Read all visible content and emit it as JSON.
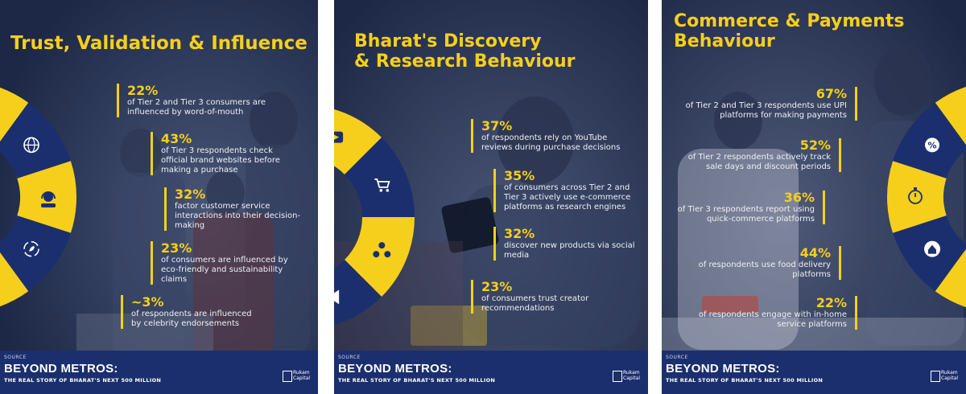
{
  "footer": {
    "source_label": "SOURCE",
    "brand": "BEYOND METROS:",
    "tagline": "THE REAL STORY OF BHARAT'S NEXT 500 MILLION",
    "logo_name": "Rukam",
    "logo_sub": "Capital"
  },
  "panels": [
    {
      "title_lines": [
        "Trust, Validation & Influence"
      ],
      "stats": [
        {
          "pct": "22%",
          "desc": "of Tier 2 and Tier 3 consumers are influenced by word-of-mouth"
        },
        {
          "pct": "43%",
          "desc": "of Tier 3 respondents check official brand websites before making a purchase"
        },
        {
          "pct": "32%",
          "desc": "factor customer service interactions into their decision-making"
        },
        {
          "pct": "23%",
          "desc": "of consumers are influenced by eco-friendly and sustainability claims"
        },
        {
          "pct": "~3%",
          "desc": "of respondents are influenced by celebrity endorsements"
        }
      ],
      "icons": [
        "speaking-head-icon",
        "globe-icon",
        "support-agent-icon",
        "eco-recycle-icon",
        "celebrity-star-icon"
      ]
    },
    {
      "title_lines": [
        "Bharat's Discovery",
        "& Research Behaviour"
      ],
      "stats": [
        {
          "pct": "37%",
          "desc": "of respondents rely on YouTube reviews during purchase decisions"
        },
        {
          "pct": "35%",
          "desc": "of consumers across Tier 2 and Tier 3 actively use e-commerce platforms as research engines"
        },
        {
          "pct": "32%",
          "desc": "discover new products via social media"
        },
        {
          "pct": "23%",
          "desc": "of consumers trust creator recommendations"
        }
      ],
      "icons": [
        "youtube-play-icon",
        "shopping-cart-icon",
        "social-network-icon",
        "megaphone-icon"
      ]
    },
    {
      "title_lines": [
        "Commerce & Payments",
        "Behaviour"
      ],
      "stats": [
        {
          "pct": "67%",
          "desc": "of Tier 2 and Tier 3 respondents use UPI platforms for making payments"
        },
        {
          "pct": "52%",
          "desc": "of Tier 2 respondents actively track sale days and discount periods"
        },
        {
          "pct": "36%",
          "desc": "of Tier 3 respondents report using quick-commerce platforms"
        },
        {
          "pct": "44%",
          "desc": "of respondents use food delivery platforms"
        },
        {
          "pct": "22%",
          "desc": "of respondents engage with in-home service platforms"
        }
      ],
      "icons": [
        "mobile-payment-icon",
        "discount-percent-icon",
        "stopwatch-icon",
        "home-icon",
        "delivery-scooter-icon"
      ]
    }
  ],
  "colors": {
    "accent": "#f6cf1c",
    "navy": "#1b2f6e",
    "panel_bg": "#1f2d4f"
  }
}
